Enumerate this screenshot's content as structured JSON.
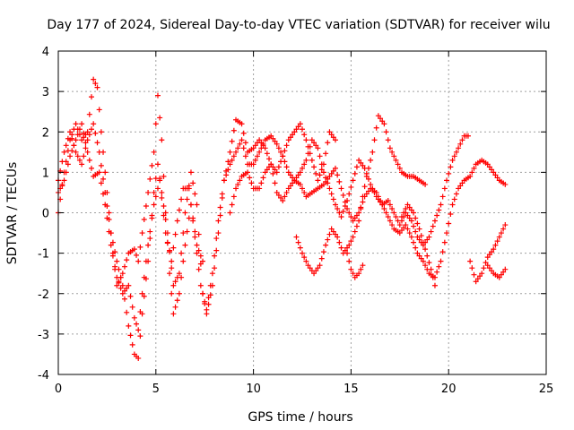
{
  "chart_data": {
    "type": "scatter",
    "title": "Day 177 of 2024, Sidereal Day-to-day VTEC variation (SDTVAR) for receiver wilu",
    "xlabel": "GPS time / hours",
    "ylabel": "SDTVAR / TECUs",
    "xlim": [
      0,
      25
    ],
    "ylim": [
      -4,
      4
    ],
    "xticks": [
      0,
      5,
      10,
      15,
      20,
      25
    ],
    "yticks": [
      -4,
      -3,
      -2,
      -1,
      0,
      1,
      2,
      3,
      4
    ],
    "grid": true,
    "marker": "+",
    "color": "#ff0000",
    "series": [
      {
        "name": "s1",
        "points": [
          [
            0.0,
            0.0
          ],
          [
            0.3,
            1.0
          ],
          [
            0.6,
            1.8
          ],
          [
            0.9,
            2.2
          ],
          [
            1.2,
            1.8
          ],
          [
            1.5,
            2.0
          ],
          [
            1.8,
            3.3
          ],
          [
            2.0,
            3.1
          ],
          [
            2.2,
            2.0
          ],
          [
            2.4,
            1.0
          ],
          [
            2.6,
            0.0
          ],
          [
            2.8,
            -1.0
          ],
          [
            3.0,
            -1.8
          ],
          [
            3.3,
            -1.5
          ],
          [
            3.6,
            -1.0
          ],
          [
            3.9,
            -0.9
          ],
          [
            4.1,
            -1.2
          ],
          [
            4.3,
            -0.5
          ],
          [
            4.6,
            0.5
          ],
          [
            4.9,
            1.5
          ],
          [
            5.1,
            2.9
          ],
          [
            5.3,
            1.8
          ],
          [
            5.5,
            0.0
          ],
          [
            5.7,
            -1.5
          ],
          [
            5.9,
            -2.5
          ],
          [
            6.2,
            -2.0
          ],
          [
            6.5,
            -0.8
          ],
          [
            6.8,
            0.2
          ],
          [
            7.1,
            -0.8
          ],
          [
            7.4,
            -1.2
          ]
        ]
      },
      {
        "name": "s2",
        "points": [
          [
            0.0,
            0.8
          ],
          [
            0.3,
            1.5
          ],
          [
            0.6,
            2.0
          ],
          [
            0.9,
            1.5
          ],
          [
            1.2,
            1.2
          ],
          [
            1.5,
            1.8
          ],
          [
            1.8,
            2.2
          ],
          [
            2.1,
            1.5
          ],
          [
            2.4,
            0.5
          ],
          [
            2.7,
            -0.5
          ],
          [
            3.0,
            -1.2
          ],
          [
            3.3,
            -1.8
          ],
          [
            3.6,
            -2.8
          ],
          [
            3.9,
            -3.5
          ],
          [
            4.1,
            -3.6
          ],
          [
            4.3,
            -2.5
          ],
          [
            4.6,
            -1.2
          ],
          [
            4.9,
            0.5
          ],
          [
            5.1,
            1.2
          ],
          [
            5.3,
            0.5
          ],
          [
            5.6,
            -0.5
          ],
          [
            5.9,
            -1.8
          ],
          [
            6.2,
            -1.5
          ],
          [
            6.5,
            0.0
          ],
          [
            6.8,
            1.0
          ],
          [
            7.1,
            0.2
          ],
          [
            7.4,
            -2.0
          ],
          [
            7.6,
            -2.5
          ],
          [
            7.9,
            -1.8
          ],
          [
            8.2,
            -0.5
          ],
          [
            8.5,
            0.8
          ],
          [
            8.8,
            1.5
          ],
          [
            9.1,
            2.3
          ],
          [
            9.4,
            2.2
          ],
          [
            9.7,
            1.5
          ],
          [
            10.0,
            1.6
          ],
          [
            10.3,
            1.8
          ],
          [
            10.6,
            1.6
          ],
          [
            10.9,
            1.2
          ],
          [
            11.2,
            1.0
          ],
          [
            11.5,
            1.4
          ],
          [
            11.8,
            1.8
          ],
          [
            12.1,
            2.0
          ],
          [
            12.4,
            2.2
          ],
          [
            12.7,
            1.8
          ],
          [
            13.0,
            1.3
          ],
          [
            13.3,
            0.8
          ],
          [
            13.6,
            1.2
          ],
          [
            13.9,
            2.0
          ],
          [
            14.2,
            1.8
          ]
        ]
      },
      {
        "name": "s3",
        "points": [
          [
            0.0,
            0.5
          ],
          [
            0.3,
            0.8
          ],
          [
            0.6,
            1.4
          ],
          [
            0.9,
            1.8
          ],
          [
            1.2,
            2.2
          ],
          [
            1.5,
            1.5
          ],
          [
            1.8,
            0.9
          ],
          [
            2.1,
            1.0
          ],
          [
            2.4,
            0.2
          ],
          [
            2.7,
            -0.8
          ],
          [
            3.0,
            -1.6
          ],
          [
            3.3,
            -2.0
          ],
          [
            3.6,
            -1.8
          ],
          [
            3.9,
            -2.6
          ],
          [
            4.1,
            -2.9
          ],
          [
            4.3,
            -2.0
          ],
          [
            4.6,
            -0.8
          ],
          [
            4.9,
            0.2
          ],
          [
            5.2,
            0.8
          ],
          [
            5.5,
            -0.5
          ],
          [
            5.8,
            -1.2
          ],
          [
            6.1,
            -0.2
          ],
          [
            6.4,
            0.6
          ],
          [
            6.7,
            0.6
          ],
          [
            7.0,
            -0.6
          ],
          [
            7.3,
            -1.8
          ],
          [
            7.6,
            -2.4
          ],
          [
            7.9,
            -1.5
          ],
          [
            8.2,
            -0.2
          ],
          [
            8.5,
            0.8
          ],
          [
            8.8,
            1.2
          ],
          [
            9.1,
            1.5
          ],
          [
            9.4,
            1.8
          ],
          [
            9.7,
            1.2
          ],
          [
            10.0,
            1.2
          ],
          [
            10.3,
            1.5
          ],
          [
            10.6,
            1.8
          ],
          [
            10.9,
            1.9
          ],
          [
            11.2,
            1.7
          ],
          [
            11.5,
            1.4
          ],
          [
            11.8,
            1.0
          ],
          [
            12.1,
            0.8
          ],
          [
            12.4,
            1.0
          ],
          [
            12.7,
            1.3
          ],
          [
            13.0,
            1.8
          ],
          [
            13.3,
            1.6
          ],
          [
            13.6,
            1.0
          ],
          [
            13.9,
            0.6
          ],
          [
            14.2,
            0.2
          ],
          [
            14.5,
            -0.1
          ],
          [
            14.8,
            0.3
          ],
          [
            15.1,
            0.8
          ],
          [
            15.4,
            1.3
          ],
          [
            15.7,
            1.1
          ],
          [
            16.0,
            0.7
          ],
          [
            16.3,
            0.4
          ],
          [
            16.6,
            0.2
          ],
          [
            16.9,
            0.3
          ],
          [
            17.2,
            0.0
          ],
          [
            17.5,
            -0.3
          ],
          [
            17.8,
            0.0
          ],
          [
            18.1,
            -0.2
          ],
          [
            18.4,
            -0.6
          ],
          [
            18.7,
            -0.8
          ],
          [
            19.0,
            -0.6
          ],
          [
            19.3,
            -0.2
          ],
          [
            19.6,
            0.2
          ],
          [
            19.9,
            0.8
          ],
          [
            20.2,
            1.3
          ],
          [
            20.5,
            1.6
          ],
          [
            20.8,
            1.9
          ],
          [
            21.0,
            1.9
          ]
        ]
      },
      {
        "name": "s4",
        "points": [
          [
            8.8,
            0.0
          ],
          [
            9.1,
            0.6
          ],
          [
            9.4,
            0.9
          ],
          [
            9.7,
            1.0
          ],
          [
            10.0,
            0.6
          ],
          [
            10.3,
            0.6
          ],
          [
            10.6,
            1.0
          ],
          [
            10.9,
            1.2
          ],
          [
            11.2,
            0.5
          ],
          [
            11.5,
            0.3
          ],
          [
            11.8,
            0.6
          ],
          [
            12.1,
            0.8
          ],
          [
            12.4,
            0.7
          ],
          [
            12.7,
            0.4
          ],
          [
            13.0,
            0.5
          ],
          [
            13.3,
            0.6
          ],
          [
            13.6,
            0.7
          ],
          [
            13.9,
            0.9
          ],
          [
            14.2,
            1.1
          ],
          [
            14.5,
            0.6
          ],
          [
            14.8,
            0.1
          ],
          [
            15.1,
            -0.2
          ],
          [
            15.4,
            0.0
          ],
          [
            15.7,
            0.4
          ],
          [
            16.0,
            0.6
          ],
          [
            16.3,
            0.5
          ],
          [
            16.6,
            0.2
          ],
          [
            16.9,
            -0.1
          ],
          [
            17.2,
            -0.4
          ],
          [
            17.5,
            -0.5
          ],
          [
            17.8,
            -0.3
          ],
          [
            18.1,
            -0.6
          ],
          [
            18.4,
            -1.0
          ],
          [
            18.7,
            -1.2
          ],
          [
            19.0,
            -1.5
          ],
          [
            19.3,
            -1.6
          ],
          [
            19.6,
            -1.2
          ],
          [
            19.9,
            -0.5
          ],
          [
            20.2,
            0.2
          ],
          [
            20.5,
            0.6
          ],
          [
            20.8,
            0.8
          ],
          [
            21.1,
            0.9
          ],
          [
            21.4,
            1.2
          ],
          [
            21.7,
            1.3
          ],
          [
            22.0,
            1.2
          ],
          [
            22.3,
            1.0
          ],
          [
            22.6,
            0.8
          ],
          [
            22.9,
            0.7
          ]
        ]
      },
      {
        "name": "s5",
        "points": [
          [
            12.2,
            -0.6
          ],
          [
            12.5,
            -1.0
          ],
          [
            12.8,
            -1.3
          ],
          [
            13.1,
            -1.5
          ],
          [
            13.4,
            -1.3
          ],
          [
            13.7,
            -0.8
          ],
          [
            14.0,
            -0.4
          ],
          [
            14.3,
            -0.6
          ],
          [
            14.6,
            -1.0
          ],
          [
            14.9,
            -0.8
          ],
          [
            15.1,
            -0.6
          ],
          [
            15.4,
            -0.2
          ],
          [
            15.6,
            0.4
          ],
          [
            15.8,
            0.9
          ],
          [
            16.1,
            1.5
          ],
          [
            16.4,
            2.4
          ],
          [
            16.7,
            2.2
          ],
          [
            17.0,
            1.6
          ],
          [
            17.3,
            1.3
          ],
          [
            17.6,
            1.0
          ],
          [
            17.9,
            0.9
          ],
          [
            18.2,
            0.9
          ],
          [
            18.5,
            0.8
          ],
          [
            18.8,
            0.7
          ]
        ]
      },
      {
        "name": "s6",
        "points": [
          [
            14.8,
            -1.0
          ],
          [
            15.0,
            -1.4
          ],
          [
            15.2,
            -1.6
          ],
          [
            15.4,
            -1.5
          ],
          [
            15.6,
            -1.3
          ]
        ]
      },
      {
        "name": "s7",
        "points": [
          [
            21.1,
            -1.2
          ],
          [
            21.4,
            -1.7
          ],
          [
            21.7,
            -1.5
          ],
          [
            22.0,
            -1.1
          ],
          [
            22.3,
            -0.9
          ],
          [
            22.6,
            -0.6
          ],
          [
            22.9,
            -0.3
          ]
        ]
      },
      {
        "name": "s8",
        "points": [
          [
            22.0,
            -1.3
          ],
          [
            22.3,
            -1.5
          ],
          [
            22.6,
            -1.6
          ],
          [
            22.9,
            -1.4
          ]
        ]
      },
      {
        "name": "s9",
        "points": [
          [
            17.6,
            -0.1
          ],
          [
            17.9,
            0.2
          ],
          [
            18.2,
            0.0
          ],
          [
            18.5,
            -0.4
          ],
          [
            18.8,
            -0.9
          ],
          [
            19.1,
            -1.4
          ],
          [
            19.3,
            -1.8
          ]
        ]
      }
    ]
  }
}
